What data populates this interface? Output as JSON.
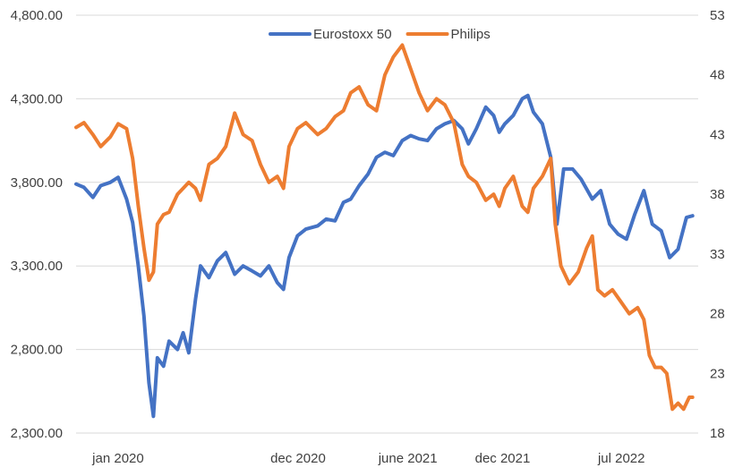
{
  "chart_data": {
    "type": "line",
    "title": "",
    "legend": {
      "placement": "top"
    },
    "grid": {
      "horizontal": true,
      "vertical": false
    },
    "left_axis": {
      "min": 2300,
      "max": 4800,
      "ticks": [
        {
          "value": 2300,
          "label": "2,300.00"
        },
        {
          "value": 2800,
          "label": "2,800.00"
        },
        {
          "value": 3300,
          "label": "3,300.00"
        },
        {
          "value": 3800,
          "label": "3,800.00"
        },
        {
          "value": 4300,
          "label": "4,300.00"
        },
        {
          "value": 4800,
          "label": "4,800.00"
        }
      ]
    },
    "right_axis": {
      "min": 18,
      "max": 53,
      "ticks": [
        {
          "value": 18,
          "label": "18"
        },
        {
          "value": 23,
          "label": "23"
        },
        {
          "value": 28,
          "label": "28"
        },
        {
          "value": 33,
          "label": "33"
        },
        {
          "value": 38,
          "label": "38"
        },
        {
          "value": 43,
          "label": "43"
        },
        {
          "value": 48,
          "label": "48"
        },
        {
          "value": 53,
          "label": "53"
        }
      ]
    },
    "x_axis": {
      "start": "2019-11-01",
      "end": "2022-11-15",
      "ticks": [
        {
          "date": "2020-01-15",
          "label": "jan 2020"
        },
        {
          "date": "2020-12-01",
          "label": "dec 2020"
        },
        {
          "date": "2021-06-15",
          "label": "june 2021"
        },
        {
          "date": "2021-12-01",
          "label": "dec 2021"
        },
        {
          "date": "2022-07-01",
          "label": "jul 2022"
        }
      ]
    },
    "series": [
      {
        "name": "Eurostoxx 50",
        "axis": "left",
        "color": "#4472c4",
        "points": [
          [
            "2019-11-01",
            3790
          ],
          [
            "2019-11-15",
            3770
          ],
          [
            "2019-12-01",
            3710
          ],
          [
            "2019-12-15",
            3780
          ],
          [
            "2020-01-01",
            3800
          ],
          [
            "2020-01-15",
            3830
          ],
          [
            "2020-01-30",
            3700
          ],
          [
            "2020-02-10",
            3560
          ],
          [
            "2020-02-20",
            3300
          ],
          [
            "2020-03-01",
            3000
          ],
          [
            "2020-03-10",
            2600
          ],
          [
            "2020-03-18",
            2400
          ],
          [
            "2020-03-25",
            2750
          ],
          [
            "2020-04-05",
            2700
          ],
          [
            "2020-04-15",
            2850
          ],
          [
            "2020-04-30",
            2800
          ],
          [
            "2020-05-10",
            2900
          ],
          [
            "2020-05-20",
            2780
          ],
          [
            "2020-06-01",
            3100
          ],
          [
            "2020-06-10",
            3300
          ],
          [
            "2020-06-25",
            3230
          ],
          [
            "2020-07-10",
            3330
          ],
          [
            "2020-07-25",
            3380
          ],
          [
            "2020-08-10",
            3250
          ],
          [
            "2020-08-25",
            3300
          ],
          [
            "2020-09-10",
            3270
          ],
          [
            "2020-09-25",
            3240
          ],
          [
            "2020-10-10",
            3300
          ],
          [
            "2020-10-25",
            3200
          ],
          [
            "2020-11-05",
            3160
          ],
          [
            "2020-11-15",
            3350
          ],
          [
            "2020-11-30",
            3480
          ],
          [
            "2020-12-15",
            3520
          ],
          [
            "2021-01-05",
            3540
          ],
          [
            "2021-01-20",
            3580
          ],
          [
            "2021-02-05",
            3570
          ],
          [
            "2021-02-20",
            3680
          ],
          [
            "2021-03-05",
            3700
          ],
          [
            "2021-03-20",
            3780
          ],
          [
            "2021-04-05",
            3850
          ],
          [
            "2021-04-20",
            3950
          ],
          [
            "2021-05-05",
            3980
          ],
          [
            "2021-05-20",
            3960
          ],
          [
            "2021-06-05",
            4050
          ],
          [
            "2021-06-20",
            4080
          ],
          [
            "2021-07-05",
            4060
          ],
          [
            "2021-07-20",
            4050
          ],
          [
            "2021-08-05",
            4120
          ],
          [
            "2021-08-20",
            4150
          ],
          [
            "2021-09-05",
            4170
          ],
          [
            "2021-09-20",
            4120
          ],
          [
            "2021-10-01",
            4030
          ],
          [
            "2021-10-15",
            4120
          ],
          [
            "2021-11-01",
            4250
          ],
          [
            "2021-11-15",
            4200
          ],
          [
            "2021-11-25",
            4100
          ],
          [
            "2021-12-05",
            4150
          ],
          [
            "2021-12-20",
            4200
          ],
          [
            "2022-01-05",
            4300
          ],
          [
            "2022-01-15",
            4320
          ],
          [
            "2022-01-25",
            4220
          ],
          [
            "2022-02-10",
            4150
          ],
          [
            "2022-02-25",
            3950
          ],
          [
            "2022-03-08",
            3550
          ],
          [
            "2022-03-20",
            3880
          ],
          [
            "2022-04-05",
            3880
          ],
          [
            "2022-04-20",
            3820
          ],
          [
            "2022-05-10",
            3700
          ],
          [
            "2022-05-25",
            3750
          ],
          [
            "2022-06-10",
            3550
          ],
          [
            "2022-06-25",
            3490
          ],
          [
            "2022-07-10",
            3460
          ],
          [
            "2022-07-25",
            3610
          ],
          [
            "2022-08-10",
            3750
          ],
          [
            "2022-08-25",
            3550
          ],
          [
            "2022-09-10",
            3510
          ],
          [
            "2022-09-25",
            3350
          ],
          [
            "2022-10-10",
            3400
          ],
          [
            "2022-10-25",
            3590
          ],
          [
            "2022-11-05",
            3600
          ]
        ]
      },
      {
        "name": "Philips",
        "axis": "right",
        "color": "#ed7d31",
        "points": [
          [
            "2019-11-01",
            43.6
          ],
          [
            "2019-11-15",
            44.0
          ],
          [
            "2019-12-01",
            43.0
          ],
          [
            "2019-12-15",
            42.0
          ],
          [
            "2020-01-01",
            42.8
          ],
          [
            "2020-01-15",
            43.9
          ],
          [
            "2020-01-30",
            43.5
          ],
          [
            "2020-02-10",
            41.0
          ],
          [
            "2020-02-20",
            37.0
          ],
          [
            "2020-03-01",
            33.5
          ],
          [
            "2020-03-10",
            30.8
          ],
          [
            "2020-03-18",
            31.5
          ],
          [
            "2020-03-25",
            35.5
          ],
          [
            "2020-04-05",
            36.3
          ],
          [
            "2020-04-15",
            36.5
          ],
          [
            "2020-04-30",
            38.0
          ],
          [
            "2020-05-10",
            38.5
          ],
          [
            "2020-05-20",
            39.0
          ],
          [
            "2020-06-01",
            38.5
          ],
          [
            "2020-06-10",
            37.5
          ],
          [
            "2020-06-25",
            40.5
          ],
          [
            "2020-07-10",
            41.0
          ],
          [
            "2020-07-25",
            42.0
          ],
          [
            "2020-08-10",
            44.8
          ],
          [
            "2020-08-25",
            43.0
          ],
          [
            "2020-09-10",
            42.5
          ],
          [
            "2020-09-25",
            40.5
          ],
          [
            "2020-10-10",
            39.0
          ],
          [
            "2020-10-25",
            39.5
          ],
          [
            "2020-11-05",
            38.5
          ],
          [
            "2020-11-15",
            42.0
          ],
          [
            "2020-11-30",
            43.5
          ],
          [
            "2020-12-15",
            44.0
          ],
          [
            "2021-01-05",
            43.0
          ],
          [
            "2021-01-20",
            43.5
          ],
          [
            "2021-02-05",
            44.5
          ],
          [
            "2021-02-20",
            45.0
          ],
          [
            "2021-03-05",
            46.5
          ],
          [
            "2021-03-20",
            47.0
          ],
          [
            "2021-04-05",
            45.5
          ],
          [
            "2021-04-20",
            45.0
          ],
          [
            "2021-05-05",
            48.0
          ],
          [
            "2021-05-20",
            49.5
          ],
          [
            "2021-06-05",
            50.5
          ],
          [
            "2021-06-20",
            48.5
          ],
          [
            "2021-07-05",
            46.5
          ],
          [
            "2021-07-20",
            45.0
          ],
          [
            "2021-08-05",
            46.0
          ],
          [
            "2021-08-20",
            45.5
          ],
          [
            "2021-09-05",
            44.0
          ],
          [
            "2021-09-20",
            40.5
          ],
          [
            "2021-10-01",
            39.5
          ],
          [
            "2021-10-15",
            39.0
          ],
          [
            "2021-11-01",
            37.5
          ],
          [
            "2021-11-15",
            38.0
          ],
          [
            "2021-11-25",
            37.0
          ],
          [
            "2021-12-05",
            38.5
          ],
          [
            "2021-12-20",
            39.5
          ],
          [
            "2022-01-05",
            37.0
          ],
          [
            "2022-01-15",
            36.5
          ],
          [
            "2022-01-25",
            38.5
          ],
          [
            "2022-02-10",
            39.5
          ],
          [
            "2022-02-25",
            41.0
          ],
          [
            "2022-03-05",
            35.5
          ],
          [
            "2022-03-15",
            32.0
          ],
          [
            "2022-03-30",
            30.5
          ],
          [
            "2022-04-15",
            31.5
          ],
          [
            "2022-04-30",
            33.5
          ],
          [
            "2022-05-10",
            34.5
          ],
          [
            "2022-05-20",
            30.0
          ],
          [
            "2022-06-01",
            29.5
          ],
          [
            "2022-06-15",
            30.0
          ],
          [
            "2022-06-30",
            29.0
          ],
          [
            "2022-07-15",
            28.0
          ],
          [
            "2022-07-30",
            28.5
          ],
          [
            "2022-08-10",
            27.5
          ],
          [
            "2022-08-20",
            24.5
          ],
          [
            "2022-08-30",
            23.5
          ],
          [
            "2022-09-10",
            23.5
          ],
          [
            "2022-09-20",
            23.0
          ],
          [
            "2022-09-30",
            20.0
          ],
          [
            "2022-10-10",
            20.5
          ],
          [
            "2022-10-20",
            20.0
          ],
          [
            "2022-10-30",
            21.0
          ],
          [
            "2022-11-05",
            21.0
          ]
        ]
      }
    ]
  }
}
